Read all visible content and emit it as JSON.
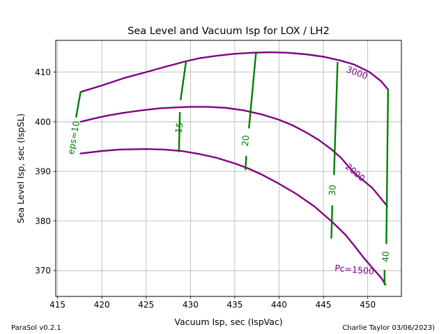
{
  "footer": {
    "left": "ParaSol v0.2.1",
    "right": "Charlie Taylor 03/06/2023)"
  },
  "chart_data": {
    "type": "line",
    "title": "Sea Level and Vacuum Isp for LOX / LH2",
    "xlabel": "Vacuum Isp, sec (IspVac)",
    "ylabel": "Sea Level Isp, sec (IspSL)",
    "xlim": [
      414.8,
      453.8
    ],
    "ylim": [
      364.8,
      416.4
    ],
    "xticks": [
      415,
      420,
      425,
      430,
      435,
      440,
      445,
      450
    ],
    "yticks": [
      370,
      380,
      390,
      400,
      410
    ],
    "grid": true,
    "colors": {
      "pc_lines": "#800080",
      "eps_lines": "#008000"
    },
    "pc_series": [
      {
        "name": "3000",
        "label_text": "3000",
        "label_at": [
          448.8,
          409.9
        ],
        "label_rotation": 20,
        "points": [
          [
            417.6,
            406.0
          ],
          [
            420.0,
            407.3
          ],
          [
            422.5,
            408.8
          ],
          [
            425.0,
            410.0
          ],
          [
            427.0,
            411.0
          ],
          [
            429.5,
            412.2
          ],
          [
            431.0,
            412.8
          ],
          [
            433.0,
            413.3
          ],
          [
            435.0,
            413.7
          ],
          [
            437.0,
            413.9
          ],
          [
            439.0,
            414.0
          ],
          [
            441.0,
            413.9
          ],
          [
            443.0,
            413.6
          ],
          [
            445.0,
            413.1
          ],
          [
            447.0,
            412.3
          ],
          [
            448.5,
            411.5
          ],
          [
            450.2,
            410.0
          ],
          [
            451.5,
            408.2
          ],
          [
            452.3,
            406.5
          ]
        ]
      },
      {
        "name": "2000",
        "label_text": "2000",
        "label_at": [
          448.6,
          389.8
        ],
        "label_rotation": 40,
        "points": [
          [
            417.6,
            400.0
          ],
          [
            419.0,
            400.6
          ],
          [
            420.5,
            401.2
          ],
          [
            422.5,
            401.8
          ],
          [
            424.5,
            402.3
          ],
          [
            426.5,
            402.7
          ],
          [
            428.5,
            402.9
          ],
          [
            430.0,
            403.0
          ],
          [
            432.0,
            403.0
          ],
          [
            434.0,
            402.8
          ],
          [
            436.0,
            402.3
          ],
          [
            438.0,
            401.5
          ],
          [
            440.0,
            400.4
          ],
          [
            441.5,
            399.3
          ],
          [
            443.0,
            397.9
          ],
          [
            444.5,
            396.3
          ],
          [
            446.0,
            394.3
          ],
          [
            447.0,
            392.7
          ],
          [
            448.5,
            389.6
          ],
          [
            450.5,
            386.7
          ],
          [
            452.2,
            383.0
          ]
        ]
      },
      {
        "name": "Pc=1500",
        "label_text": "Pc=1500",
        "label_at": [
          448.5,
          370.2
        ],
        "label_rotation": 5,
        "points": [
          [
            417.6,
            393.6
          ],
          [
            420.0,
            394.1
          ],
          [
            422.0,
            394.4
          ],
          [
            425.0,
            394.5
          ],
          [
            427.0,
            394.4
          ],
          [
            429.0,
            394.1
          ],
          [
            431.0,
            393.5
          ],
          [
            433.0,
            392.7
          ],
          [
            435.0,
            391.6
          ],
          [
            436.5,
            390.6
          ],
          [
            438.0,
            389.4
          ],
          [
            440.0,
            387.5
          ],
          [
            442.0,
            385.4
          ],
          [
            444.0,
            382.9
          ],
          [
            446.0,
            379.8
          ],
          [
            447.5,
            377.2
          ],
          [
            448.5,
            375.0
          ],
          [
            449.5,
            372.7
          ],
          [
            450.5,
            370.6
          ],
          [
            451.5,
            368.6
          ],
          [
            452.0,
            367.2
          ]
        ]
      }
    ],
    "eps_series": [
      {
        "name": "eps=10",
        "label_text": "eps=10",
        "label_at": [
          416.8,
          396.8
        ],
        "label_rotation": -80,
        "segments": [
          [
            [
              417.6,
              406.0
            ],
            [
              417.1,
              401.0
            ]
          ]
        ]
      },
      {
        "name": "15",
        "label_text": "15",
        "label_at": [
          428.7,
          398.8
        ],
        "label_rotation": -82,
        "segments": [
          [
            [
              429.5,
              412.2
            ],
            [
              428.9,
              404.5
            ]
          ],
          [
            [
              428.8,
              401.8
            ],
            [
              428.7,
              394.0
            ]
          ]
        ]
      },
      {
        "name": "20",
        "label_text": "20",
        "label_at": [
          436.2,
          396.2
        ],
        "label_rotation": -84,
        "segments": [
          [
            [
              437.4,
              414.0
            ],
            [
              436.6,
              398.8
            ]
          ],
          [
            [
              436.3,
              393.0
            ],
            [
              436.2,
              390.4
            ]
          ]
        ]
      },
      {
        "name": "30",
        "label_text": "30",
        "label_at": [
          446.0,
          386.2
        ],
        "label_rotation": -86,
        "segments": [
          [
            [
              446.6,
              411.9
            ],
            [
              446.2,
              389.4
            ]
          ],
          [
            [
              446.0,
              383.0
            ],
            [
              445.9,
              376.6
            ]
          ]
        ]
      },
      {
        "name": "40",
        "label_text": "40",
        "label_at": [
          452.0,
          372.8
        ],
        "label_rotation": -88,
        "segments": [
          [
            [
              452.3,
              406.5
            ],
            [
              452.1,
              375.5
            ]
          ],
          [
            [
              451.9,
              370.0
            ],
            [
              451.9,
              367.2
            ]
          ]
        ]
      }
    ]
  }
}
